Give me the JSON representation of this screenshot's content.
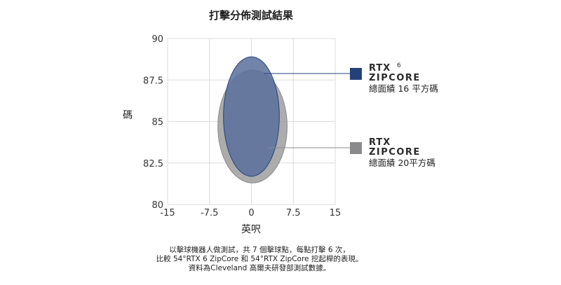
{
  "chart_data": {
    "type": "scatter",
    "title": "打擊分佈測試結果",
    "xlabel": "英呎",
    "ylabel": "碼",
    "xlim": [
      -15,
      15
    ],
    "ylim": [
      80,
      90
    ],
    "x_ticks": [
      "-15",
      "-7.5",
      "0",
      "7.5",
      "15"
    ],
    "y_ticks": [
      "80",
      "82.5",
      "85",
      "87.5",
      "90"
    ],
    "grid": true,
    "legend_position": "right",
    "series": [
      {
        "name": "RTX ZIPCORE",
        "brand_line1": "RTX",
        "superscript": "",
        "brand_line2": "ZIPCORE",
        "area_label": "總面績 20平方碼",
        "color": "#8a8a8d",
        "fill_color": "#9e9e9e",
        "dispersion_ellipse": {
          "center_x": 0.2,
          "center_y": 84.7,
          "radius_x": 6.2,
          "radius_y": 3.4
        }
      },
      {
        "name": "RTX 6 ZIPCORE",
        "brand_line1": "RTX",
        "superscript": "6",
        "brand_line2": "ZIPCORE",
        "area_label": "總面績 16 平方碼",
        "color": "#25417a",
        "fill_color": "#5a6f9c",
        "dispersion_ellipse": {
          "center_x": 0,
          "center_y": 85.3,
          "radius_x": 5.0,
          "radius_y": 3.6
        }
      }
    ]
  },
  "caption": {
    "line1": "以擊球機器人做測試，共 7 個擊球點，每點打擊 6 次，",
    "line2": "比較 54°RTX 6 ZipCore 和 54°RTX ZipCore 挖起桿的表現。",
    "line3": "資料為Cleveland 高爾夫研發部測試數據。"
  }
}
